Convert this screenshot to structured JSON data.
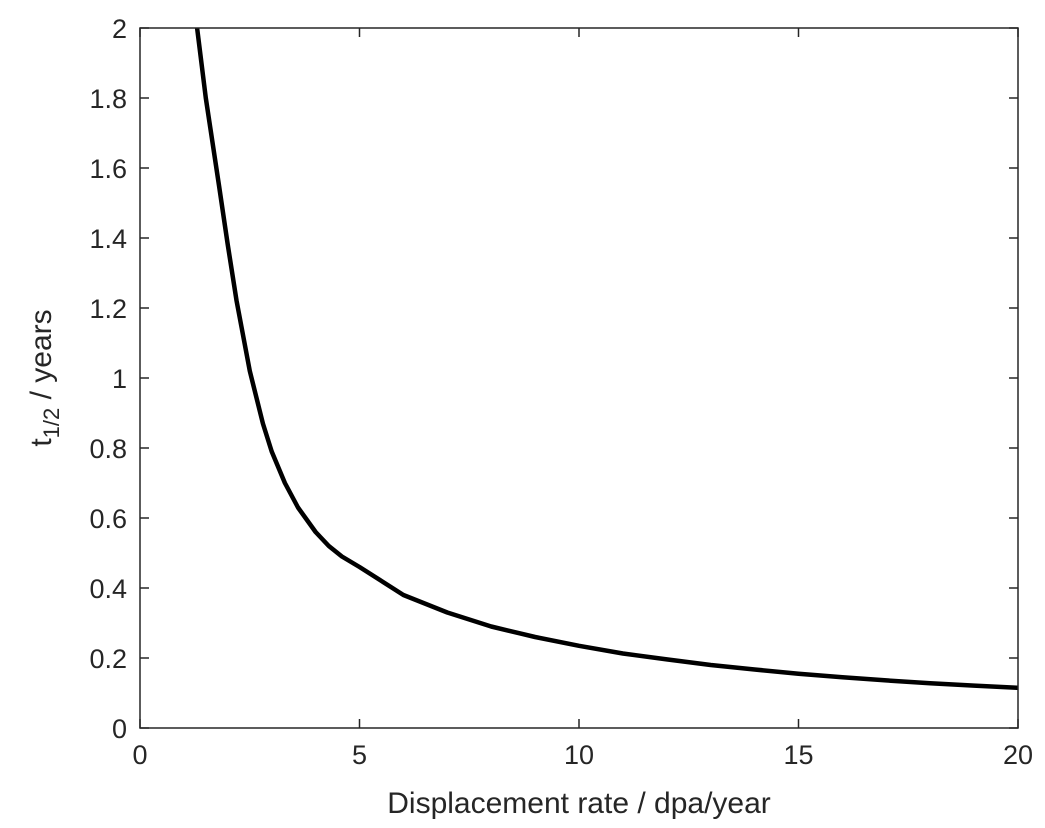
{
  "chart_data": {
    "type": "line",
    "xlabel": "Displacement rate / dpa/year",
    "ylabel": {
      "main": "t",
      "subscript": "1/2",
      "rest": " / years"
    },
    "xlim": [
      0,
      20
    ],
    "ylim": [
      0,
      2
    ],
    "xticks": [
      0,
      5,
      10,
      15,
      20
    ],
    "xtick_labels": [
      "0",
      "5",
      "10",
      "15",
      "20"
    ],
    "yticks": [
      0,
      0.2,
      0.4,
      0.6,
      0.8,
      1,
      1.2,
      1.4,
      1.6,
      1.8,
      2
    ],
    "ytick_labels": [
      "0",
      "0.2",
      "0.4",
      "0.6",
      "0.8",
      "1",
      "1.2",
      "1.4",
      "1.6",
      "1.8",
      "2"
    ],
    "grid": false,
    "series": [
      {
        "color": "#000000",
        "x": [
          1.3,
          1.5,
          1.8,
          2.0,
          2.2,
          2.5,
          2.8,
          3.0,
          3.3,
          3.6,
          4.0,
          4.3,
          4.6,
          5.0,
          5.5,
          6.0,
          7.0,
          8.0,
          9.0,
          10.0,
          11.0,
          12.0,
          13.0,
          14.0,
          15.0,
          16.0,
          17.0,
          18.0,
          19.0,
          20.0
        ],
        "y": [
          2.0,
          1.8,
          1.55,
          1.38,
          1.22,
          1.02,
          0.87,
          0.79,
          0.7,
          0.63,
          0.56,
          0.52,
          0.49,
          0.46,
          0.42,
          0.38,
          0.33,
          0.29,
          0.26,
          0.235,
          0.213,
          0.196,
          0.18,
          0.167,
          0.155,
          0.145,
          0.136,
          0.128,
          0.121,
          0.115
        ]
      }
    ]
  }
}
